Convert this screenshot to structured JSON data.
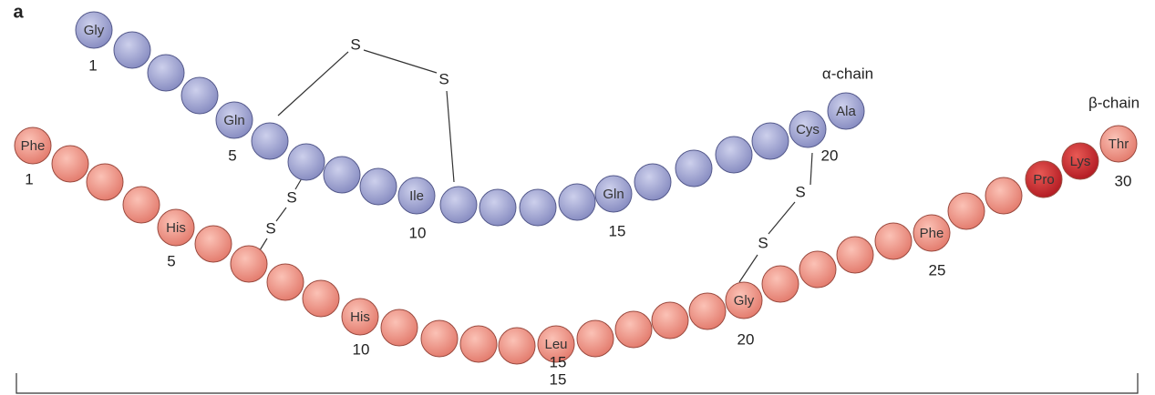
{
  "panel_label": "a",
  "alpha_chain": {
    "name": "α-chain",
    "residue_labels": [
      "Gly",
      "Gln",
      "Ile",
      "Gln",
      "Cys",
      "Ala"
    ],
    "position_numbers": [
      "1",
      "5",
      "10",
      "15",
      "20"
    ]
  },
  "beta_chain": {
    "name": "β-chain",
    "residue_labels": [
      "Phe",
      "His",
      "His",
      "Leu",
      "Gly",
      "Phe",
      "Pro",
      "Lys",
      "Thr"
    ],
    "position_numbers": [
      "1",
      "5",
      "10",
      "15",
      "20",
      "25",
      "30"
    ]
  },
  "disulfide_labels": [
    "S",
    "S",
    "S",
    "S",
    "S",
    "S"
  ],
  "scale_label": "15"
}
